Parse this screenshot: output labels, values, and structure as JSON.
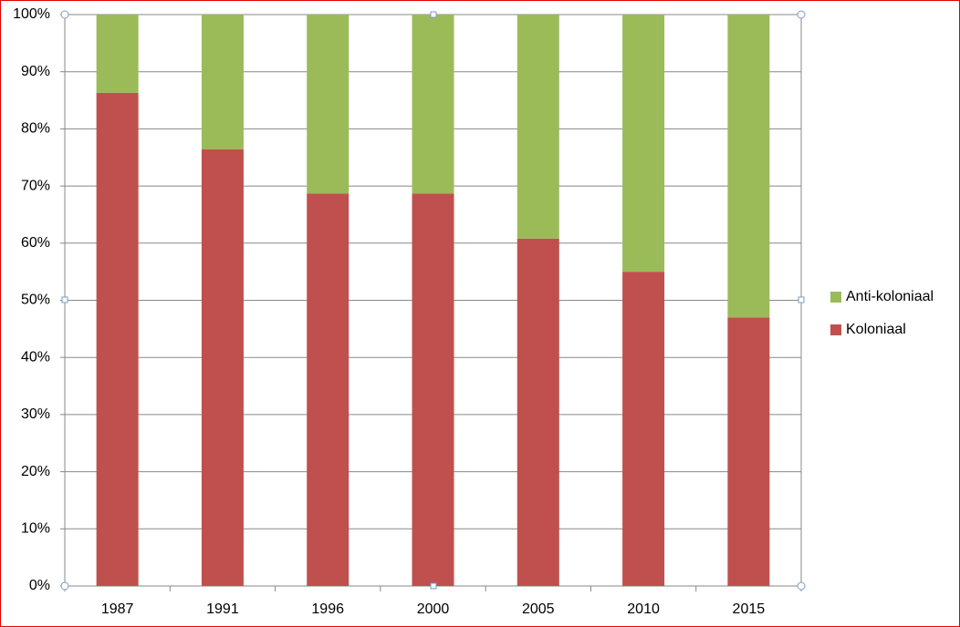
{
  "chart_data": {
    "type": "stacked_bar",
    "categories": [
      "1987",
      "1991",
      "1996",
      "2000",
      "2005",
      "2010",
      "2015"
    ],
    "series": [
      {
        "name": "Koloniaal",
        "color": "#c0504d",
        "values": [
          86.3,
          76.4,
          68.7,
          68.7,
          60.8,
          55,
          47
        ]
      },
      {
        "name": "Anti-koloniaal",
        "color": "#9bbb59",
        "values": [
          13.7,
          23.6,
          31.3,
          31.3,
          39.2,
          45,
          53
        ]
      }
    ],
    "ylim": [
      0,
      100
    ],
    "yticks": [
      {
        "value": 0,
        "label": "0%"
      },
      {
        "value": 10,
        "label": "10%"
      },
      {
        "value": 20,
        "label": "20%"
      },
      {
        "value": 30,
        "label": "30%"
      },
      {
        "value": 40,
        "label": "40%"
      },
      {
        "value": 50,
        "label": "50%"
      },
      {
        "value": 60,
        "label": "60%"
      },
      {
        "value": 70,
        "label": "70%"
      },
      {
        "value": 80,
        "label": "80%"
      },
      {
        "value": 90,
        "label": "90%"
      },
      {
        "value": 100,
        "label": "100%"
      }
    ],
    "grid": true,
    "legend": "right"
  }
}
